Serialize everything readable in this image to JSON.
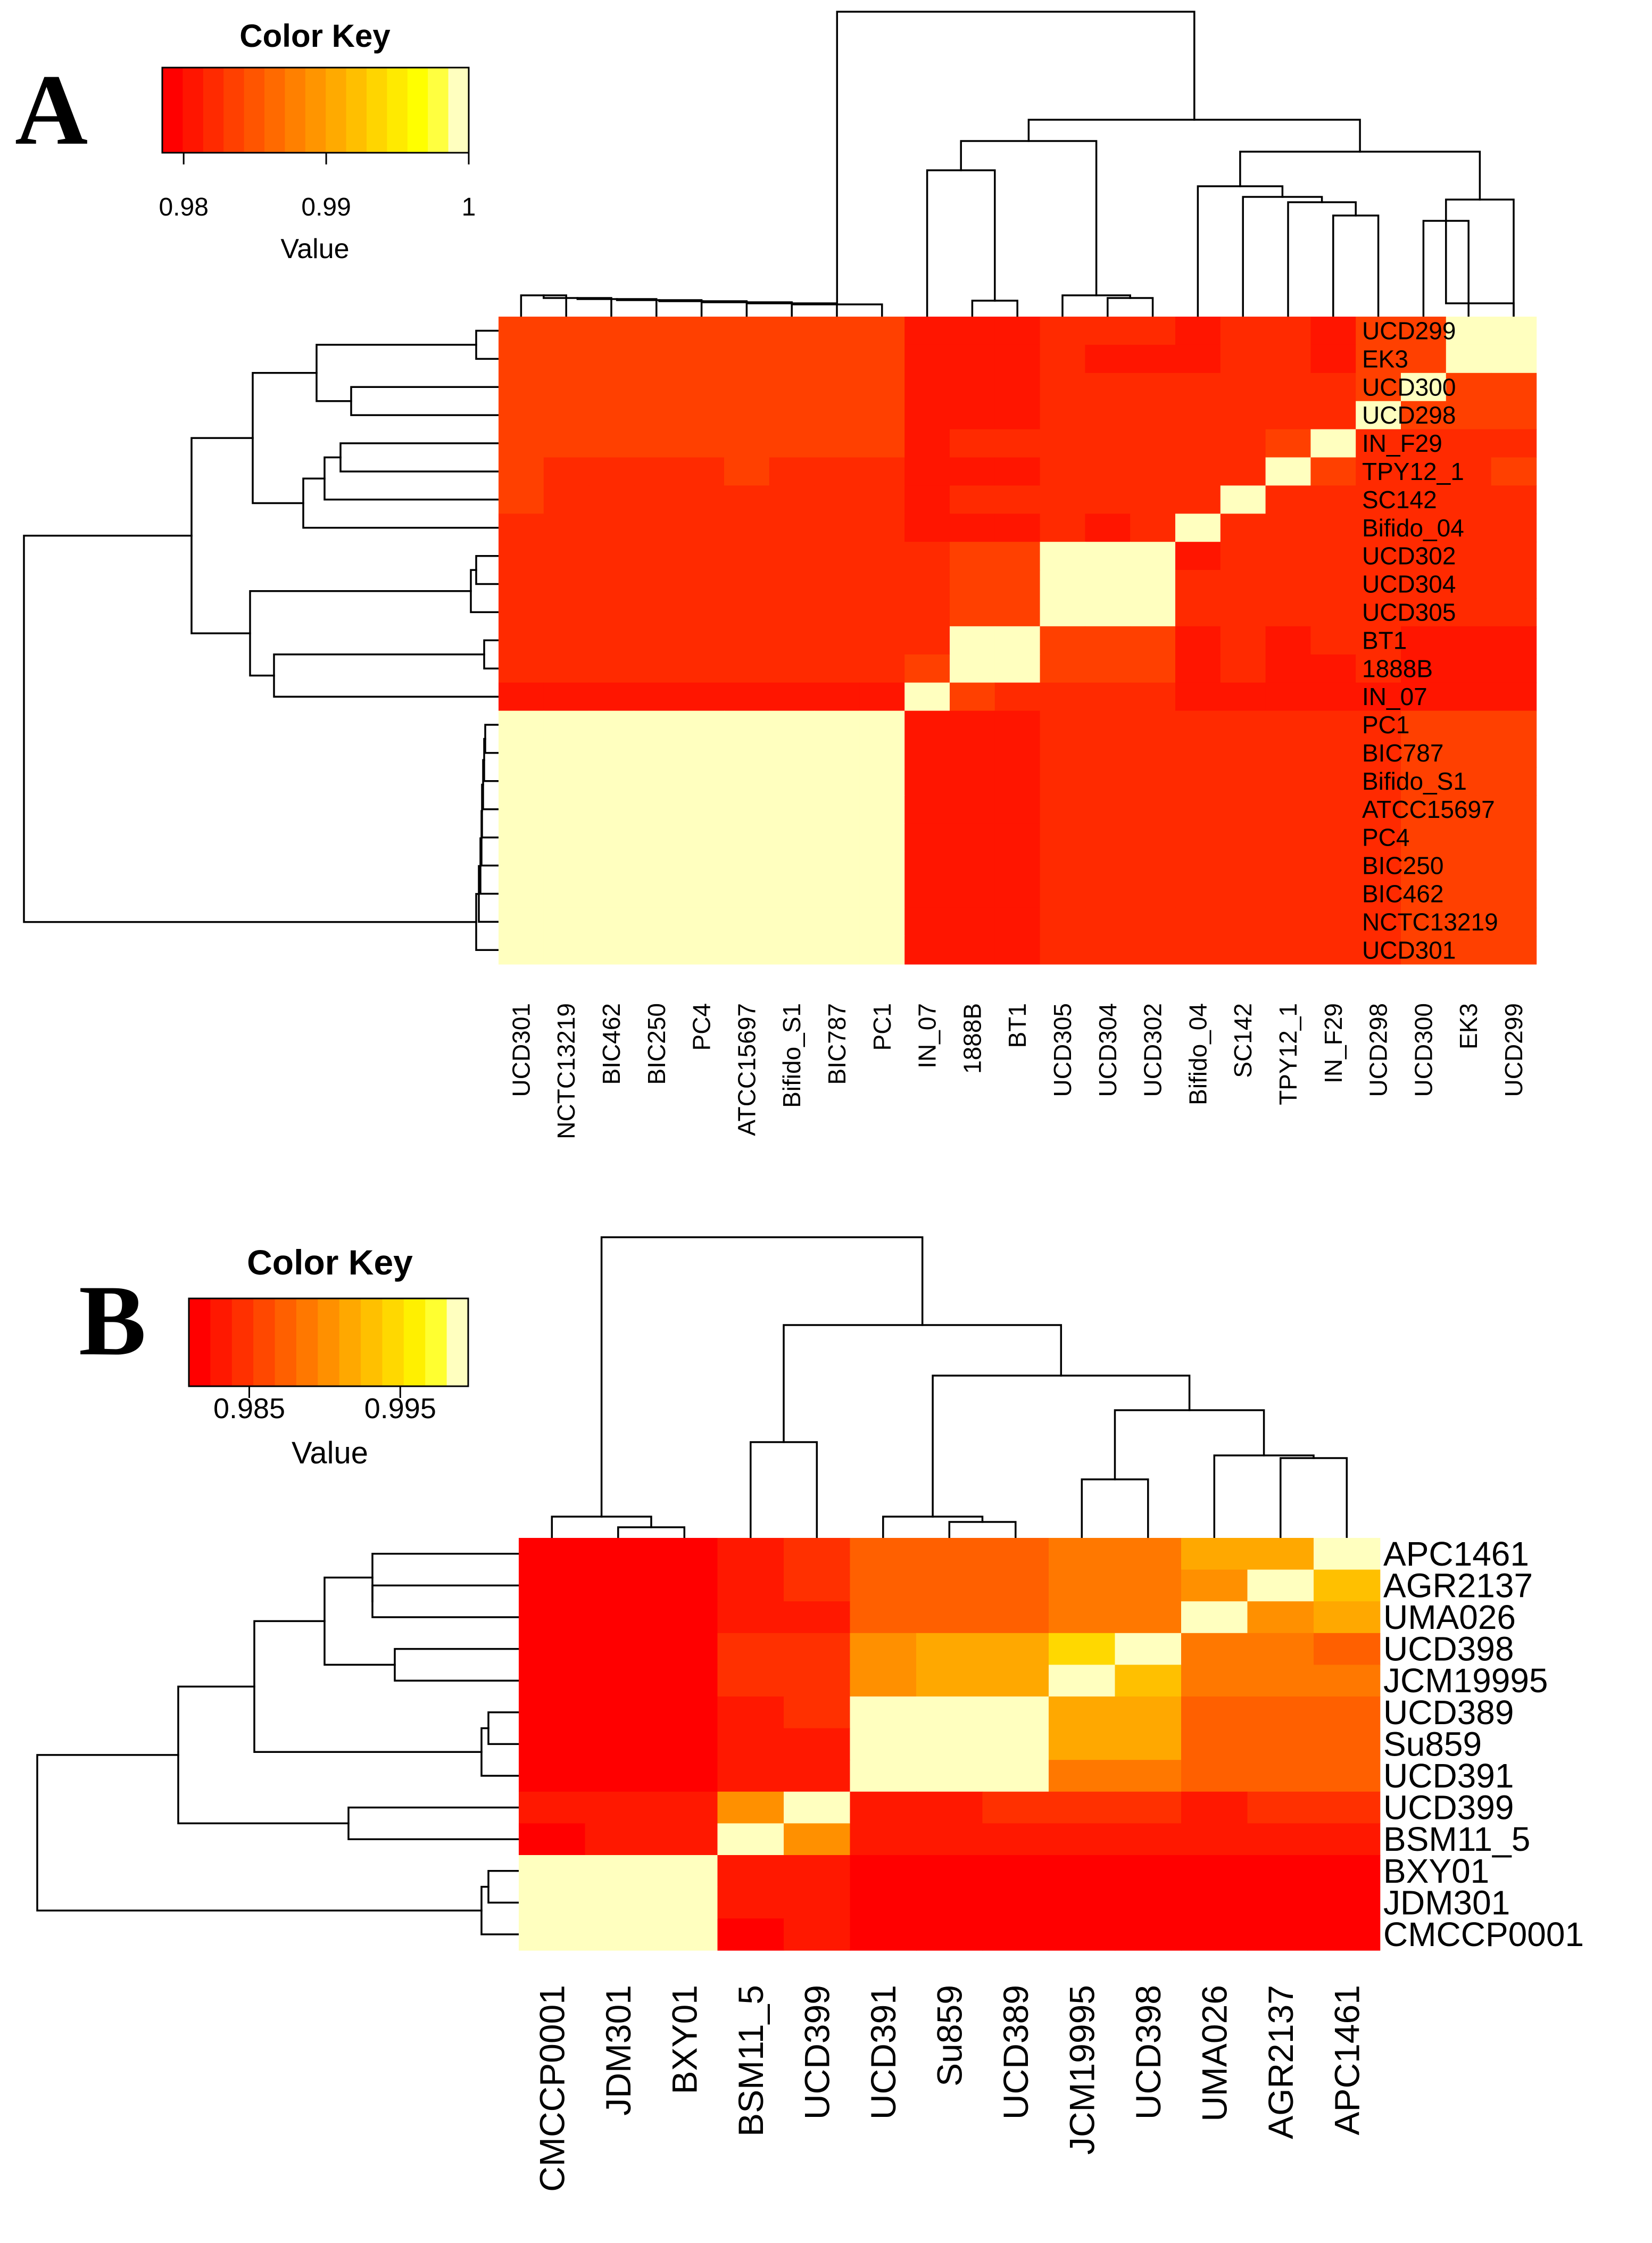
{
  "chart_data": [
    {
      "panel": "A",
      "type": "heatmap",
      "color_key": {
        "title": "Color Key",
        "xlabel": "Value",
        "range": [
          0.9785,
          1.0
        ],
        "ticks": [
          {
            "value": 0.98,
            "label": "0.98"
          },
          {
            "value": 0.99,
            "label": "0.99"
          },
          {
            "value": 1.0,
            "label": "1"
          }
        ],
        "colors": [
          "#ff0000",
          "#ff1500",
          "#ff2a00",
          "#ff4000",
          "#ff5500",
          "#ff6a00",
          "#ff8000",
          "#ff9500",
          "#ffaa00",
          "#ffbf00",
          "#ffd500",
          "#ffea00",
          "#ffff00",
          "#ffff40",
          "#ffffbf"
        ]
      },
      "rows": [
        "UCD299",
        "EK3",
        "UCD300",
        "UCD298",
        "IN_F29",
        "TPY12_1",
        "SC142",
        "Bifido_04",
        "UCD302",
        "UCD304",
        "UCD305",
        "BT1",
        "1888B",
        "IN_07",
        "PC1",
        "BIC787",
        "Bifido_S1",
        "ATCC15697",
        "PC4",
        "BIC250",
        "BIC462",
        "NCTC13219",
        "UCD301"
      ],
      "columns": [
        "UCD301",
        "NCTC13219",
        "BIC462",
        "BIC250",
        "PC4",
        "ATCC15697",
        "Bifido_S1",
        "BIC787",
        "PC1",
        "IN_07",
        "1888B",
        "BT1",
        "UCD305",
        "UCD304",
        "UCD302",
        "Bifido_04",
        "SC142",
        "TPY12_1",
        "IN_F29",
        "UCD298",
        "UCD300",
        "EK3",
        "UCD299"
      ],
      "values": [
        [
          0.9835,
          0.9835,
          0.9835,
          0.9835,
          0.9835,
          0.9835,
          0.9835,
          0.9835,
          0.9835,
          0.9805,
          0.981,
          0.981,
          0.9815,
          0.9815,
          0.9815,
          0.981,
          0.982,
          0.9815,
          0.981,
          0.9835,
          0.9835,
          0.9998,
          0.9998
        ],
        [
          0.9835,
          0.9835,
          0.9835,
          0.9835,
          0.9835,
          0.9835,
          0.9835,
          0.9835,
          0.9835,
          0.9805,
          0.981,
          0.981,
          0.9815,
          0.981,
          0.981,
          0.981,
          0.982,
          0.9815,
          0.981,
          0.9835,
          0.9835,
          0.9998,
          0.9998
        ],
        [
          0.9835,
          0.9835,
          0.9835,
          0.9835,
          0.9835,
          0.9835,
          0.9835,
          0.9835,
          0.9835,
          0.9805,
          0.981,
          0.981,
          0.9815,
          0.9815,
          0.9815,
          0.9815,
          0.982,
          0.982,
          0.9815,
          0.9835,
          0.9998,
          0.9835,
          0.9835
        ],
        [
          0.9835,
          0.9835,
          0.9835,
          0.9835,
          0.9835,
          0.9835,
          0.9835,
          0.9835,
          0.9835,
          0.9805,
          0.981,
          0.981,
          0.9815,
          0.9815,
          0.9815,
          0.9815,
          0.982,
          0.982,
          0.9815,
          0.9998,
          0.9835,
          0.9835,
          0.9835
        ],
        [
          0.983,
          0.983,
          0.983,
          0.983,
          0.983,
          0.983,
          0.983,
          0.983,
          0.983,
          0.9805,
          0.9815,
          0.9815,
          0.9815,
          0.9815,
          0.9815,
          0.9815,
          0.982,
          0.9835,
          0.9998,
          0.9825,
          0.982,
          0.982,
          0.982
        ],
        [
          0.983,
          0.9825,
          0.9825,
          0.9825,
          0.9825,
          0.983,
          0.9825,
          0.9825,
          0.9825,
          0.9805,
          0.981,
          0.981,
          0.9815,
          0.9815,
          0.9815,
          0.9815,
          0.982,
          0.9998,
          0.9835,
          0.982,
          0.982,
          0.982,
          0.983
        ],
        [
          0.983,
          0.9825,
          0.9825,
          0.9825,
          0.9825,
          0.9825,
          0.9825,
          0.9825,
          0.9825,
          0.9805,
          0.9815,
          0.9815,
          0.9815,
          0.9815,
          0.9815,
          0.9815,
          0.9998,
          0.982,
          0.982,
          0.982,
          0.982,
          0.982,
          0.982
        ],
        [
          0.9825,
          0.9825,
          0.9825,
          0.9825,
          0.9825,
          0.9825,
          0.9825,
          0.9825,
          0.9825,
          0.9805,
          0.981,
          0.981,
          0.9815,
          0.981,
          0.9815,
          0.9998,
          0.982,
          0.982,
          0.982,
          0.982,
          0.982,
          0.9815,
          0.9815
        ],
        [
          0.9825,
          0.9825,
          0.9825,
          0.9825,
          0.9825,
          0.9825,
          0.9825,
          0.9825,
          0.9825,
          0.9825,
          0.983,
          0.983,
          0.9998,
          0.9998,
          0.9998,
          0.981,
          0.982,
          0.982,
          0.982,
          0.982,
          0.982,
          0.9815,
          0.982
        ],
        [
          0.9825,
          0.9825,
          0.9825,
          0.9825,
          0.9825,
          0.9825,
          0.9825,
          0.9825,
          0.9825,
          0.9825,
          0.983,
          0.983,
          0.9998,
          0.9998,
          0.9998,
          0.9815,
          0.982,
          0.982,
          0.982,
          0.982,
          0.982,
          0.9815,
          0.982
        ],
        [
          0.9825,
          0.9825,
          0.9825,
          0.9825,
          0.9825,
          0.9825,
          0.9825,
          0.9825,
          0.9825,
          0.9825,
          0.983,
          0.983,
          0.9998,
          0.9998,
          0.9998,
          0.9815,
          0.982,
          0.982,
          0.982,
          0.982,
          0.982,
          0.982,
          0.982
        ],
        [
          0.9815,
          0.9815,
          0.9815,
          0.9815,
          0.9815,
          0.9815,
          0.9815,
          0.9815,
          0.9815,
          0.9825,
          0.9998,
          0.9998,
          0.983,
          0.983,
          0.983,
          0.981,
          0.982,
          0.981,
          0.982,
          0.982,
          0.981,
          0.981,
          0.981
        ],
        [
          0.9815,
          0.9815,
          0.9815,
          0.9815,
          0.9815,
          0.9815,
          0.9815,
          0.9815,
          0.9815,
          0.983,
          0.9998,
          0.9998,
          0.983,
          0.983,
          0.983,
          0.981,
          0.9815,
          0.981,
          0.981,
          0.9815,
          0.981,
          0.981,
          0.981
        ],
        [
          0.981,
          0.981,
          0.981,
          0.981,
          0.981,
          0.981,
          0.981,
          0.981,
          0.981,
          0.9998,
          0.983,
          0.9825,
          0.9825,
          0.9825,
          0.9825,
          0.981,
          0.981,
          0.981,
          0.981,
          0.981,
          0.981,
          0.981,
          0.9805
        ],
        [
          0.9998,
          0.9998,
          0.9998,
          0.9998,
          0.9998,
          0.9998,
          0.9998,
          0.9998,
          0.9998,
          0.9805,
          0.981,
          0.981,
          0.9815,
          0.9815,
          0.9815,
          0.9815,
          0.9815,
          0.9815,
          0.9815,
          0.982,
          0.983,
          0.983,
          0.983
        ],
        [
          0.9998,
          0.9998,
          0.9998,
          0.9998,
          0.9998,
          0.9998,
          0.9998,
          0.9998,
          0.9998,
          0.9805,
          0.981,
          0.981,
          0.9815,
          0.9815,
          0.9815,
          0.9815,
          0.9815,
          0.9815,
          0.9815,
          0.982,
          0.983,
          0.983,
          0.983
        ],
        [
          0.9998,
          0.9998,
          0.9998,
          0.9998,
          0.9998,
          0.9998,
          0.9998,
          0.9998,
          0.9998,
          0.9805,
          0.981,
          0.981,
          0.9815,
          0.9815,
          0.9815,
          0.9815,
          0.9815,
          0.9815,
          0.9815,
          0.982,
          0.983,
          0.983,
          0.983
        ],
        [
          0.9998,
          0.9998,
          0.9998,
          0.9998,
          0.9998,
          0.9998,
          0.9998,
          0.9998,
          0.9998,
          0.9805,
          0.981,
          0.981,
          0.9815,
          0.9815,
          0.9815,
          0.9815,
          0.9815,
          0.9815,
          0.982,
          0.982,
          0.983,
          0.983,
          0.983
        ],
        [
          0.9998,
          0.9998,
          0.9998,
          0.9998,
          0.9998,
          0.9998,
          0.9998,
          0.9998,
          0.9998,
          0.9805,
          0.981,
          0.981,
          0.9815,
          0.9815,
          0.9815,
          0.9815,
          0.9815,
          0.9815,
          0.9815,
          0.982,
          0.983,
          0.983,
          0.983
        ],
        [
          0.9998,
          0.9998,
          0.9998,
          0.9998,
          0.9998,
          0.9998,
          0.9998,
          0.9998,
          0.9998,
          0.9805,
          0.981,
          0.981,
          0.9815,
          0.9815,
          0.9815,
          0.9815,
          0.9815,
          0.9815,
          0.9815,
          0.982,
          0.983,
          0.983,
          0.983
        ],
        [
          0.9998,
          0.9998,
          0.9998,
          0.9998,
          0.9998,
          0.9998,
          0.9998,
          0.9998,
          0.9998,
          0.9805,
          0.981,
          0.981,
          0.9815,
          0.9815,
          0.9815,
          0.9815,
          0.9815,
          0.9815,
          0.9815,
          0.982,
          0.983,
          0.983,
          0.983
        ],
        [
          0.9998,
          0.9998,
          0.9998,
          0.9998,
          0.9998,
          0.9998,
          0.9998,
          0.9998,
          0.9998,
          0.9805,
          0.981,
          0.981,
          0.9815,
          0.9815,
          0.9815,
          0.9815,
          0.9815,
          0.982,
          0.982,
          0.982,
          0.983,
          0.983,
          0.983
        ],
        [
          0.9998,
          0.9998,
          0.9998,
          0.9998,
          0.9998,
          0.9998,
          0.9998,
          0.9998,
          0.9998,
          0.9805,
          0.981,
          0.981,
          0.9815,
          0.9815,
          0.9815,
          0.9815,
          0.982,
          0.982,
          0.982,
          0.982,
          0.983,
          0.983,
          0.983
        ]
      ]
    },
    {
      "panel": "B",
      "type": "heatmap",
      "color_key": {
        "title": "Color Key",
        "xlabel": "Value",
        "range": [
          0.981,
          0.9995
        ],
        "ticks": [
          {
            "value": 0.985,
            "label": "0.985"
          },
          {
            "value": 0.995,
            "label": "0.995"
          }
        ],
        "colors": [
          "#ff0000",
          "#ff1800",
          "#ff3000",
          "#ff4800",
          "#ff6000",
          "#ff7800",
          "#ff9000",
          "#ffa800",
          "#ffc000",
          "#ffd800",
          "#fff000",
          "#ffff30",
          "#ffffbf"
        ]
      },
      "rows": [
        "APC1461",
        "AGR2137",
        "UMA026",
        "UCD398",
        "JCM19995",
        "UCD389",
        "Su859",
        "UCD391",
        "UCD399",
        "BSM11_5",
        "BXY01",
        "JDM301",
        "CMCCP0001"
      ],
      "columns": [
        "CMCCP0001",
        "JDM301",
        "BXY01",
        "BSM11_5",
        "UCD399",
        "UCD391",
        "Su859",
        "UCD389",
        "JCM19995",
        "UCD398",
        "UMA026",
        "AGR2137",
        "APC1461"
      ],
      "values": [
        [
          0.9812,
          0.9812,
          0.9812,
          0.983,
          0.985,
          0.988,
          0.988,
          0.988,
          0.9895,
          0.9885,
          0.992,
          0.992,
          0.9995
        ],
        [
          0.9812,
          0.9812,
          0.9812,
          0.983,
          0.984,
          0.988,
          0.988,
          0.988,
          0.989,
          0.989,
          0.9905,
          0.9995,
          0.9925
        ],
        [
          0.9812,
          0.9812,
          0.9812,
          0.983,
          0.983,
          0.988,
          0.988,
          0.988,
          0.989,
          0.989,
          0.9995,
          0.9905,
          0.992
        ],
        [
          0.9812,
          0.982,
          0.982,
          0.984,
          0.984,
          0.99,
          0.991,
          0.991,
          0.994,
          0.9995,
          0.989,
          0.989,
          0.987
        ],
        [
          0.9812,
          0.9812,
          0.9812,
          0.984,
          0.984,
          0.99,
          0.991,
          0.991,
          0.9995,
          0.9935,
          0.989,
          0.989,
          0.989
        ],
        [
          0.9812,
          0.9812,
          0.9812,
          0.983,
          0.984,
          0.9995,
          0.9995,
          0.9995,
          0.991,
          0.991,
          0.988,
          0.988,
          0.988
        ],
        [
          0.9812,
          0.9812,
          0.9812,
          0.983,
          0.983,
          0.9995,
          0.9995,
          0.9995,
          0.991,
          0.991,
          0.988,
          0.988,
          0.988
        ],
        [
          0.9812,
          0.9812,
          0.9812,
          0.983,
          0.983,
          0.9995,
          0.9995,
          0.9995,
          0.9885,
          0.9885,
          0.988,
          0.988,
          0.988
        ],
        [
          0.9825,
          0.9825,
          0.9825,
          0.99,
          0.9995,
          0.9835,
          0.9835,
          0.9845,
          0.984,
          0.984,
          0.9835,
          0.9845,
          0.9845
        ],
        [
          0.982,
          0.9825,
          0.9825,
          0.9995,
          0.99,
          0.9835,
          0.9835,
          0.9835,
          0.9835,
          0.9835,
          0.983,
          0.983,
          0.983
        ],
        [
          0.9995,
          0.9995,
          0.9995,
          0.983,
          0.983,
          0.9812,
          0.9812,
          0.9812,
          0.9812,
          0.982,
          0.9812,
          0.9812,
          0.9812
        ],
        [
          0.9995,
          0.9995,
          0.9995,
          0.983,
          0.983,
          0.9812,
          0.9812,
          0.9812,
          0.9812,
          0.9812,
          0.9812,
          0.9812,
          0.9812
        ],
        [
          0.9995,
          0.9995,
          0.9995,
          0.982,
          0.983,
          0.9812,
          0.9812,
          0.9812,
          0.9812,
          0.9812,
          0.9812,
          0.9812,
          0.9812
        ]
      ]
    }
  ]
}
